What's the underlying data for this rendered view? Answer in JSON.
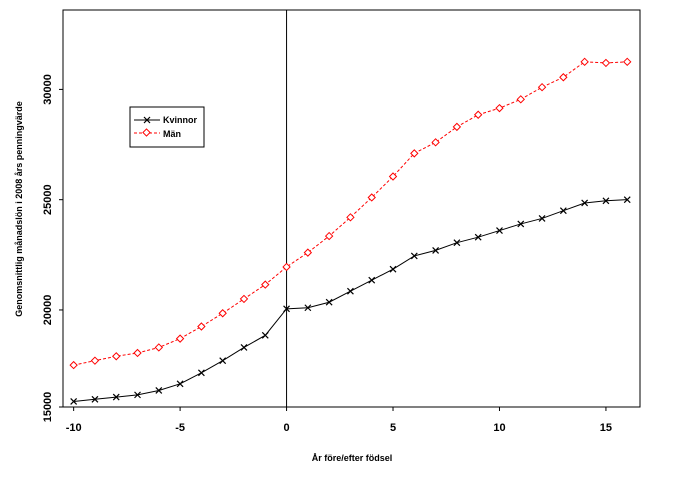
{
  "chart_data": {
    "type": "line",
    "title": "",
    "xlabel": "År före/efter födsel",
    "ylabel": "Genomsnittlig månadslön i 2008 års penningvärde",
    "xlim": [
      -10.5,
      16.6
    ],
    "ylim": [
      15600,
      33600
    ],
    "x_ticks": [
      -10,
      -5,
      0,
      5,
      10,
      15
    ],
    "y_ticks": [
      15000,
      20000,
      25000,
      30000
    ],
    "y_tick_labels": [
      "15000",
      "20000",
      "25000",
      "30000"
    ],
    "vertical_reference_line": 0,
    "legend_position": "top-left",
    "series": [
      {
        "name": "Kvinnor",
        "color": "#000000",
        "line_style": "solid",
        "marker": "x",
        "x": [
          -10,
          -9,
          -8,
          -7,
          -6,
          -5,
          -4,
          -3,
          -2,
          -1,
          0,
          1,
          2,
          3,
          4,
          5,
          6,
          7,
          8,
          9,
          10,
          11,
          12,
          13,
          14,
          15,
          16
        ],
        "y": [
          15850,
          15950,
          16050,
          16150,
          16350,
          16650,
          17150,
          17700,
          18300,
          18850,
          20050,
          20100,
          20350,
          20850,
          21350,
          21850,
          22450,
          22700,
          23050,
          23300,
          23600,
          23900,
          24150,
          24500,
          24850,
          24950,
          25000
        ]
      },
      {
        "name": "Män",
        "color": "#ff0000",
        "line_style": "dashed",
        "marker": "diamond",
        "x": [
          -10,
          -9,
          -8,
          -7,
          -6,
          -5,
          -4,
          -3,
          -2,
          -1,
          0,
          1,
          2,
          3,
          4,
          5,
          6,
          7,
          8,
          9,
          10,
          11,
          12,
          13,
          14,
          15,
          16
        ],
        "y": [
          17500,
          17700,
          17900,
          18050,
          18300,
          18700,
          19250,
          19850,
          20500,
          21150,
          21950,
          22600,
          23350,
          24200,
          25100,
          26050,
          27100,
          27600,
          28300,
          28850,
          29150,
          29550,
          30100,
          30550,
          31250,
          31200,
          31250
        ]
      }
    ]
  }
}
